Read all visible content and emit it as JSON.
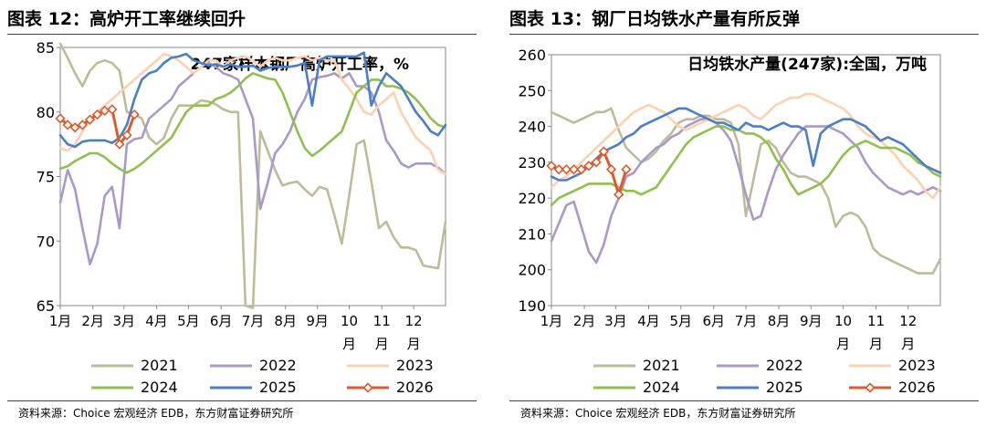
{
  "chart_data": [
    {
      "type": "line",
      "figure_label": "图表 12：高炉开工率继续回升",
      "title": "247家样本钢厂高炉开工率，%",
      "ylim": [
        65,
        85
      ],
      "yticks": [
        65,
        70,
        75,
        80,
        85
      ],
      "xlim": [
        0,
        52
      ],
      "x_ticks": [
        {
          "label": "1月",
          "x": 0
        },
        {
          "label": "2月",
          "x": 4.4
        },
        {
          "label": "3月",
          "x": 8.6
        },
        {
          "label": "4月",
          "x": 13
        },
        {
          "label": "5月",
          "x": 17.3
        },
        {
          "label": "6月",
          "x": 21.7
        },
        {
          "label": "7月",
          "x": 26
        },
        {
          "label": "8月",
          "x": 30.4
        },
        {
          "label": "9月",
          "x": 34.7
        },
        {
          "label": "10月",
          "x": 39
        },
        {
          "label": "11月",
          "x": 43.4
        },
        {
          "label": "12月",
          "x": 47.7
        }
      ],
      "series": [
        {
          "name": "2021",
          "color": "#bcbc98",
          "values": [
            85.3,
            84.2,
            83,
            82,
            83.2,
            83.8,
            84,
            83.8,
            83.2,
            80,
            79.8,
            79.5,
            78,
            77.5,
            78,
            79.5,
            80.5,
            80.5,
            80.5,
            80.9,
            80.8,
            80.6,
            80.2,
            80,
            80,
            65,
            64.8,
            78.5,
            77,
            75.5,
            74.3,
            74.5,
            74.6,
            74,
            73.5,
            74.2,
            74,
            72,
            69.8,
            73.5,
            77.5,
            77.8,
            74.6,
            71,
            71.5,
            70.3,
            69.5,
            69.5,
            69.3,
            68.1,
            68,
            67.9,
            71.5
          ]
        },
        {
          "name": "2022",
          "color": "#a899c8",
          "values": [
            73,
            75.5,
            74,
            71,
            68.2,
            69.8,
            73.5,
            74.2,
            71,
            77.5,
            77.9,
            78,
            79.5,
            80,
            80.5,
            81,
            82,
            82.5,
            83,
            83.5,
            83.8,
            83.5,
            83,
            82.8,
            82.5,
            81,
            79.5,
            72.5,
            74.5,
            76.8,
            77.5,
            78.5,
            80,
            81,
            82.5,
            82.7,
            82.8,
            83,
            82.6,
            83,
            82,
            82,
            81.5,
            80,
            77.8,
            77,
            76,
            75.7,
            76,
            76,
            76,
            75.7,
            75.2
          ]
        },
        {
          "name": "2023",
          "color": "#fdd0b0",
          "values": [
            77.2,
            77,
            77.5,
            78.5,
            79.5,
            80,
            80.5,
            81,
            81.5,
            82,
            82.5,
            83,
            83.5,
            84,
            84.5,
            84.3,
            84,
            83.5,
            83,
            83.5,
            84,
            84,
            83.5,
            84,
            84.2,
            84.3,
            84,
            83.5,
            84,
            84.2,
            84,
            84,
            84.2,
            84.3,
            84,
            84.2,
            84,
            84,
            82.5,
            81.8,
            81,
            80,
            79.8,
            80.5,
            81,
            81.5,
            80,
            79,
            78,
            77.5,
            77,
            75.5,
            75.2
          ]
        },
        {
          "name": "2024",
          "color": "#90c04c",
          "values": [
            75.6,
            75.8,
            76.2,
            76.5,
            76.8,
            76.8,
            76.5,
            76,
            75.6,
            75.3,
            75.6,
            76,
            76.5,
            77,
            77.5,
            78,
            79,
            80,
            80.5,
            80.5,
            80.5,
            81,
            81.2,
            81.5,
            82,
            82.6,
            83,
            82.8,
            82.6,
            82.5,
            81.5,
            80,
            78.5,
            77.2,
            76.6,
            77,
            77.5,
            78,
            78.5,
            80,
            81.5,
            82,
            82.5,
            82.5,
            82,
            82,
            81.8,
            81.5,
            81,
            80.3,
            79.5,
            79,
            78.8
          ]
        },
        {
          "name": "2025",
          "color": "#4a7fc8",
          "values": [
            78.2,
            77.5,
            77.3,
            77.7,
            77.8,
            77.8,
            77.8,
            77.6,
            78,
            79,
            81,
            82.5,
            83,
            83.2,
            83.8,
            84.2,
            84.3,
            84.5,
            84,
            83.8,
            83.6,
            83.7,
            83.5,
            83.7,
            83.5,
            83.5,
            83.6,
            83.2,
            83.4,
            83.5,
            83.5,
            83.5,
            83.6,
            83.8,
            80.5,
            84,
            84.3,
            84.3,
            84.3,
            84.3,
            84.3,
            84.6,
            80.5,
            82,
            83,
            82.5,
            82,
            81,
            80,
            79.3,
            78.5,
            78.2,
            79
          ]
        },
        {
          "name": "2026",
          "color": "#e0582b",
          "marker": "diamond",
          "values": [
            79.5,
            79,
            78.8,
            79,
            79.4,
            79.8,
            80.1,
            80.2,
            77.5,
            78.2,
            79.8
          ]
        }
      ]
    },
    {
      "type": "line",
      "figure_label": "图表 13：钢厂日均铁水产量有所反弹",
      "title": "日均铁水产量(247家):全国，万吨",
      "ylim": [
        190,
        260
      ],
      "yticks": [
        190,
        200,
        210,
        220,
        230,
        240,
        250,
        260
      ],
      "xlim": [
        0,
        52
      ],
      "x_ticks": [
        {
          "label": "1月",
          "x": 0
        },
        {
          "label": "2月",
          "x": 4.4
        },
        {
          "label": "3月",
          "x": 8.6
        },
        {
          "label": "4月",
          "x": 13
        },
        {
          "label": "5月",
          "x": 17.3
        },
        {
          "label": "6月",
          "x": 21.7
        },
        {
          "label": "7月",
          "x": 26
        },
        {
          "label": "8月",
          "x": 30.4
        },
        {
          "label": "9月",
          "x": 34.7
        },
        {
          "label": "10月",
          "x": 39
        },
        {
          "label": "11月",
          "x": 43.4
        },
        {
          "label": "12月",
          "x": 47.7
        }
      ],
      "series": [
        {
          "name": "2021",
          "color": "#bcbc98",
          "values": [
            244,
            243,
            242,
            241,
            242,
            243,
            244,
            244,
            245,
            239,
            234,
            232,
            230,
            231,
            233,
            236,
            238,
            241,
            242,
            242,
            243,
            243,
            242,
            242,
            241,
            235,
            215,
            225,
            235,
            236,
            234,
            230,
            227,
            226,
            226,
            225,
            224,
            220,
            212,
            215,
            216,
            215,
            212,
            206,
            204,
            203,
            202,
            201,
            200,
            199,
            199,
            199,
            203
          ]
        },
        {
          "name": "2022",
          "color": "#a899c8",
          "values": [
            208,
            213,
            218,
            219,
            212,
            205,
            202,
            207,
            215,
            220,
            226,
            227,
            230,
            232,
            234,
            235,
            237,
            238,
            240,
            241,
            242,
            242,
            241,
            239,
            236,
            229,
            221,
            214,
            215,
            222,
            228,
            232,
            235,
            238,
            240,
            240,
            240,
            240,
            239,
            238,
            236,
            234,
            230,
            227,
            225,
            223,
            222,
            221,
            222,
            221,
            222,
            223,
            222
          ]
        },
        {
          "name": "2023",
          "color": "#fdd0b0",
          "values": [
            223,
            225,
            226,
            228,
            230,
            232,
            234,
            236,
            238,
            240,
            242,
            244,
            245,
            246,
            245,
            244,
            242,
            240,
            239,
            240,
            241,
            242,
            243,
            244,
            245,
            246,
            245,
            243,
            242,
            244,
            246,
            247,
            248,
            248,
            249,
            249,
            248,
            247,
            246,
            245,
            243,
            240,
            238,
            237,
            236,
            234,
            232,
            229,
            227,
            225,
            222,
            220,
            223
          ]
        },
        {
          "name": "2024",
          "color": "#90c04c",
          "values": [
            218,
            220,
            221,
            222,
            223,
            224,
            224,
            224,
            224,
            223,
            222,
            222,
            221,
            222,
            223,
            226,
            229,
            232,
            235,
            237,
            238,
            239,
            240,
            240,
            239,
            239,
            238,
            238,
            237,
            235,
            231,
            228,
            224,
            221,
            222,
            223,
            224,
            226,
            229,
            232,
            234,
            235,
            236,
            235,
            234,
            234,
            234,
            233,
            232,
            230,
            229,
            227,
            226
          ]
        },
        {
          "name": "2025",
          "color": "#4a7fc8",
          "values": [
            226,
            225,
            225,
            226,
            227,
            229,
            231,
            233,
            234,
            235,
            237,
            238,
            240,
            241,
            242,
            243,
            244,
            245,
            245,
            244,
            243,
            242,
            241,
            241,
            240,
            239,
            241,
            240,
            240,
            239,
            240,
            241,
            240,
            240,
            239,
            229,
            238,
            240,
            241,
            242,
            242,
            241,
            240,
            238,
            236,
            237,
            236,
            235,
            233,
            231,
            229,
            228,
            227
          ]
        },
        {
          "name": "2026",
          "color": "#e0582b",
          "marker": "diamond",
          "values": [
            229,
            228,
            228,
            228,
            228,
            229,
            230,
            233,
            228,
            221,
            228
          ]
        }
      ]
    }
  ],
  "figures": [
    {
      "figure_label": "图表 12：高炉开工率继续回升",
      "source": "资料来源：Choice 宏观经济 EDB，东方财富证券研究所"
    },
    {
      "figure_label": "图表 13：钢厂日均铁水产量有所反弹",
      "source": "资料来源：Choice 宏观经济 EDB，东方财富证券研究所"
    }
  ]
}
